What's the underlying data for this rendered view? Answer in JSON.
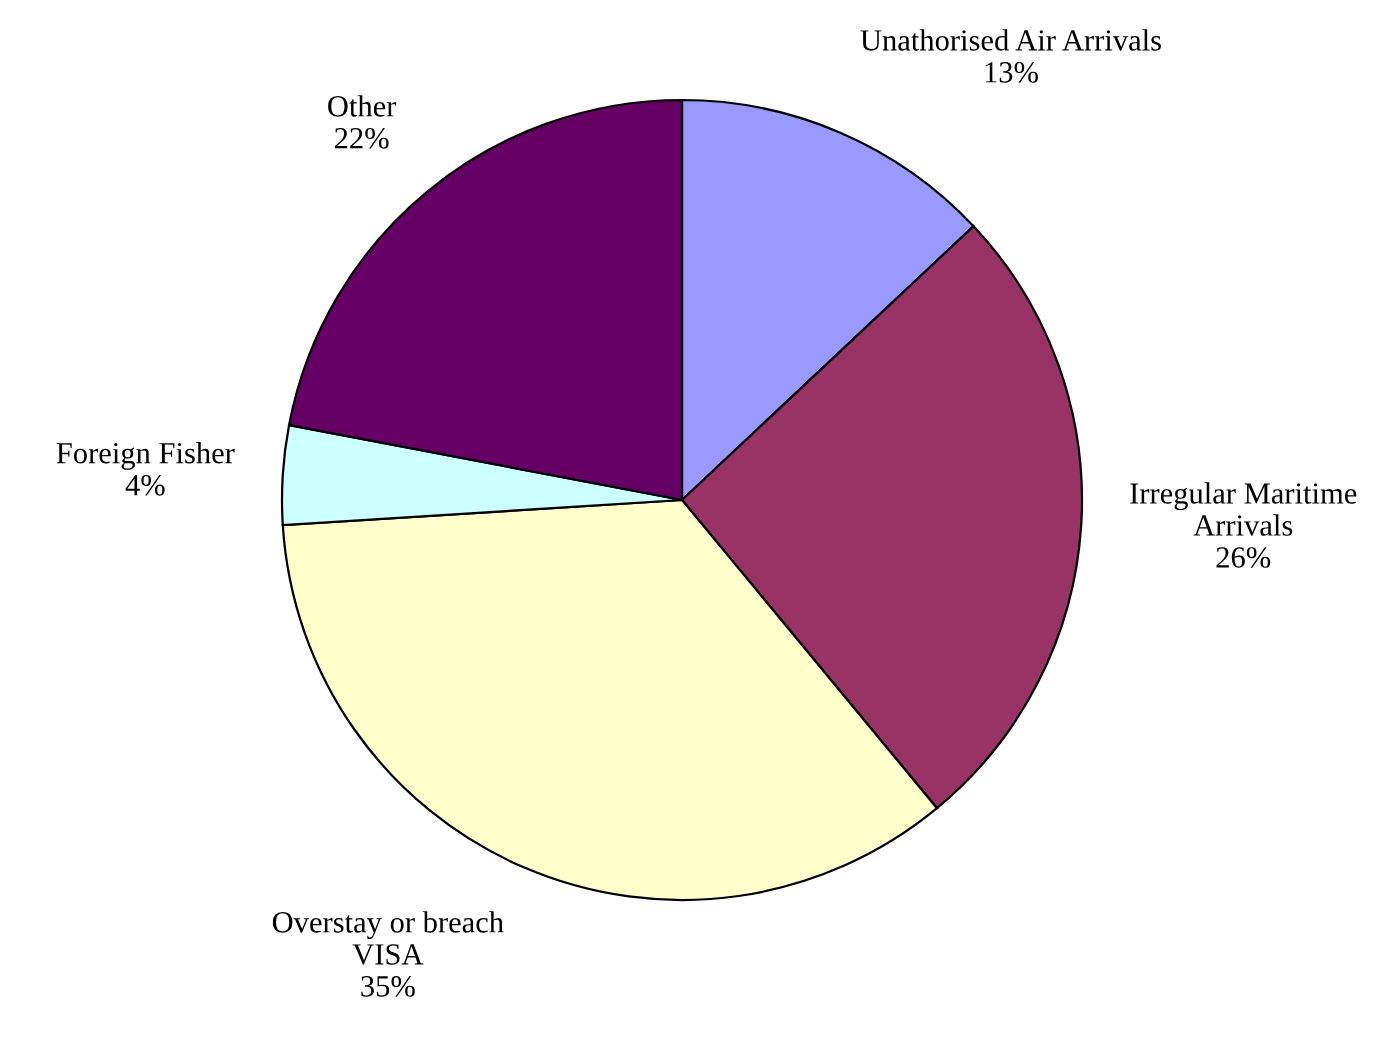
{
  "chart_data": {
    "type": "pie",
    "categories": [
      "Unathorised Air Arrivals",
      "Irregular Maritime\nArrivals",
      "Overstay or breach\nVISA",
      "Foreign Fisher",
      "Other"
    ],
    "values": [
      13,
      26,
      35,
      4,
      22
    ],
    "colors": [
      "#9999ff",
      "#993366",
      "#ffffcc",
      "#ccffff",
      "#660066"
    ],
    "value_labels": [
      "13%",
      "26%",
      "35%",
      "4%",
      "22%"
    ]
  }
}
